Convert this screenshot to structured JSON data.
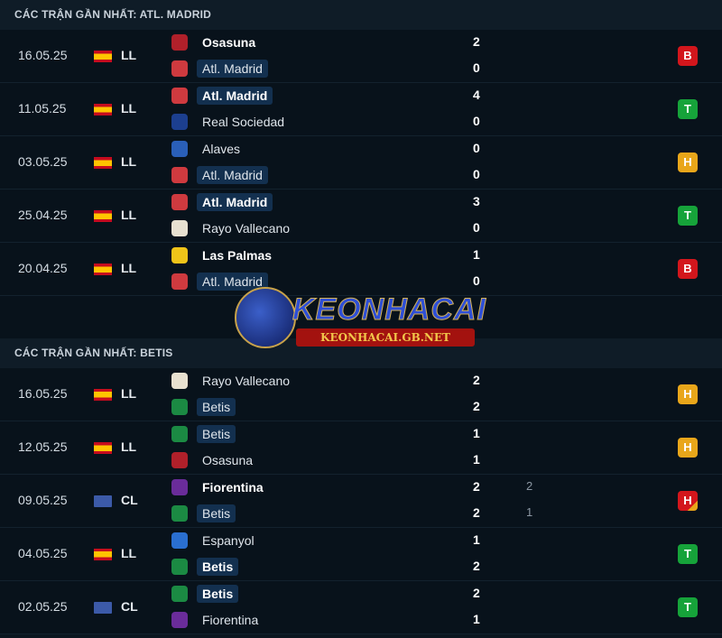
{
  "colors": {
    "B": "#d3161c",
    "T": "#16a33a",
    "H": "#e9a61a",
    "H_red": "#d3161c"
  },
  "sections": [
    {
      "title": "CÁC TRẬN GẦN NHẤT: ATL. MADRID",
      "matches": [
        {
          "date": "16.05.25",
          "flag": "spain",
          "comp": "LL",
          "home": "Osasuna",
          "away": "Atl. Madrid",
          "hs": "2",
          "as": "0",
          "hl": "away",
          "bold": "home",
          "result": "B"
        },
        {
          "date": "11.05.25",
          "flag": "spain",
          "comp": "LL",
          "home": "Atl. Madrid",
          "away": "Real Sociedad",
          "hs": "4",
          "as": "0",
          "hl": "home",
          "bold": "home",
          "result": "T"
        },
        {
          "date": "03.05.25",
          "flag": "spain",
          "comp": "LL",
          "home": "Alaves",
          "away": "Atl. Madrid",
          "hs": "0",
          "as": "0",
          "hl": "away",
          "bold": "",
          "result": "H"
        },
        {
          "date": "25.04.25",
          "flag": "spain",
          "comp": "LL",
          "home": "Atl. Madrid",
          "away": "Rayo Vallecano",
          "hs": "3",
          "as": "0",
          "hl": "home",
          "bold": "home",
          "result": "T"
        },
        {
          "date": "20.04.25",
          "flag": "spain",
          "comp": "LL",
          "home": "Las Palmas",
          "away": "Atl. Madrid",
          "hs": "1",
          "as": "0",
          "hl": "away",
          "bold": "home",
          "result": "B"
        }
      ]
    },
    {
      "title": "CÁC TRẬN GẦN NHẤT: BETIS",
      "matches": [
        {
          "date": "16.05.25",
          "flag": "spain",
          "comp": "LL",
          "home": "Rayo Vallecano",
          "away": "Betis",
          "hs": "2",
          "as": "2",
          "hl": "away",
          "bold": "",
          "result": "H"
        },
        {
          "date": "12.05.25",
          "flag": "spain",
          "comp": "LL",
          "home": "Betis",
          "away": "Osasuna",
          "hs": "1",
          "as": "1",
          "hl": "home",
          "bold": "",
          "result": "H"
        },
        {
          "date": "09.05.25",
          "flag": "europe",
          "comp": "CL",
          "home": "Fiorentina",
          "away": "Betis",
          "hs": "2",
          "as": "2",
          "hpen": "2",
          "apen": "1",
          "hl": "away",
          "bold": "home",
          "result": "H",
          "result_style": "red"
        },
        {
          "date": "04.05.25",
          "flag": "spain",
          "comp": "LL",
          "home": "Espanyol",
          "away": "Betis",
          "hs": "1",
          "as": "2",
          "hl": "away",
          "bold": "away",
          "result": "T"
        },
        {
          "date": "02.05.25",
          "flag": "europe",
          "comp": "CL",
          "home": "Betis",
          "away": "Fiorentina",
          "hs": "2",
          "as": "1",
          "hl": "home",
          "bold": "home",
          "result": "T"
        }
      ]
    }
  ],
  "watermark": {
    "brand": "KEONHACAI",
    "url": "KEONHACAI.GB.NET"
  }
}
